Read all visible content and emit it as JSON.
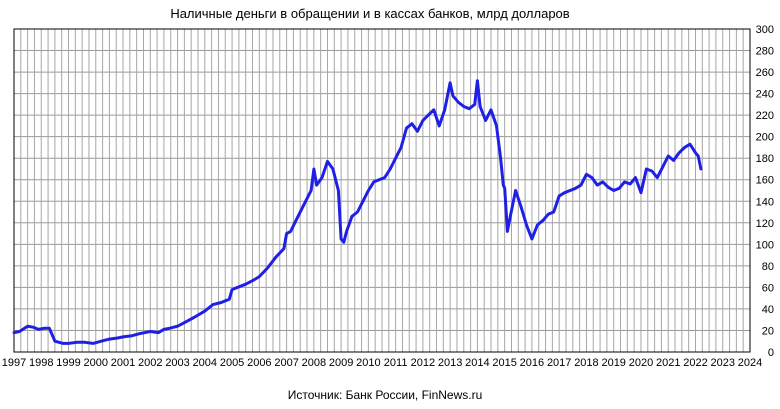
{
  "chart_data": {
    "type": "line",
    "title": "Наличные деньги в обращении и в кассах банков, млрд долларов",
    "source": "Источник: Банк России, FinNews.ru",
    "xlabel": "",
    "ylabel": "",
    "xlim": [
      1997,
      2024
    ],
    "ylim": [
      0,
      300
    ],
    "x_ticks": [
      "1997",
      "1998",
      "1999",
      "2000",
      "2001",
      "2002",
      "2003",
      "2004",
      "2005",
      "2006",
      "2007",
      "2008",
      "2009",
      "2010",
      "2011",
      "2012",
      "2013",
      "2014",
      "2015",
      "2016",
      "2017",
      "2018",
      "2019",
      "2020",
      "2021",
      "2022",
      "2023",
      "2024"
    ],
    "y_ticks": [
      "0",
      "20",
      "40",
      "60",
      "80",
      "100",
      "120",
      "140",
      "160",
      "180",
      "200",
      "220",
      "240",
      "260",
      "280",
      "300"
    ],
    "grid": true,
    "legend": "none",
    "line_color": "#1f1fe6",
    "series": [
      {
        "x": [
          1997.0,
          1997.2,
          1997.5,
          1997.7,
          1997.9,
          1998.1,
          1998.3,
          1998.5,
          1998.65,
          1998.8,
          1999.0,
          1999.3,
          1999.6,
          1999.9,
          2000.2,
          2000.5,
          2000.8,
          2001.0,
          2001.3,
          2001.6,
          2002.0,
          2002.3,
          2002.5,
          2002.7,
          2003.0,
          2003.3,
          2003.6,
          2004.0,
          2004.3,
          2004.6,
          2004.9,
          2005.0,
          2005.2,
          2005.5,
          2005.8,
          2006.0,
          2006.3,
          2006.6,
          2006.9,
          2007.0,
          2007.15,
          2007.3,
          2007.6,
          2007.9,
          2008.0,
          2008.1,
          2008.3,
          2008.5,
          2008.7,
          2008.9,
          2009.0,
          2009.1,
          2009.2,
          2009.4,
          2009.6,
          2009.8,
          2010.0,
          2010.2,
          2010.4,
          2010.6,
          2010.8,
          2011.0,
          2011.2,
          2011.4,
          2011.6,
          2011.8,
          2012.0,
          2012.2,
          2012.4,
          2012.6,
          2012.8,
          2013.0,
          2013.1,
          2013.3,
          2013.5,
          2013.7,
          2013.9,
          2014.0,
          2014.1,
          2014.3,
          2014.5,
          2014.7,
          2014.85,
          2014.95,
          2015.0,
          2015.1,
          2015.2,
          2015.4,
          2015.6,
          2015.8,
          2016.0,
          2016.2,
          2016.4,
          2016.6,
          2016.8,
          2017.0,
          2017.2,
          2017.4,
          2017.6,
          2017.8,
          2018.0,
          2018.2,
          2018.4,
          2018.6,
          2018.8,
          2019.0,
          2019.2,
          2019.4,
          2019.6,
          2019.8,
          2020.0,
          2020.2,
          2020.4,
          2020.6,
          2020.8,
          2021.0,
          2021.2,
          2021.4,
          2021.6,
          2021.8,
          2022.0,
          2022.1,
          2022.2
        ],
        "y": [
          18,
          19,
          24,
          23,
          21,
          22,
          22,
          10,
          9,
          8,
          8,
          9,
          9,
          8,
          10,
          12,
          13,
          14,
          15,
          17,
          19,
          18,
          21,
          22,
          24,
          28,
          32,
          38,
          44,
          46,
          49,
          58,
          60,
          63,
          67,
          70,
          78,
          88,
          96,
          110,
          112,
          120,
          135,
          150,
          170,
          155,
          162,
          177,
          170,
          150,
          105,
          102,
          112,
          126,
          130,
          140,
          150,
          158,
          160,
          162,
          170,
          180,
          190,
          208,
          212,
          205,
          215,
          220,
          225,
          210,
          225,
          250,
          238,
          232,
          228,
          226,
          230,
          252,
          228,
          215,
          225,
          210,
          180,
          155,
          152,
          112,
          125,
          150,
          135,
          118,
          105,
          118,
          122,
          128,
          130,
          145,
          148,
          150,
          152,
          155,
          165,
          162,
          155,
          158,
          153,
          150,
          152,
          158,
          156,
          162,
          148,
          170,
          168,
          162,
          172,
          182,
          178,
          185,
          190,
          193,
          185,
          182,
          170
        ]
      }
    ]
  }
}
